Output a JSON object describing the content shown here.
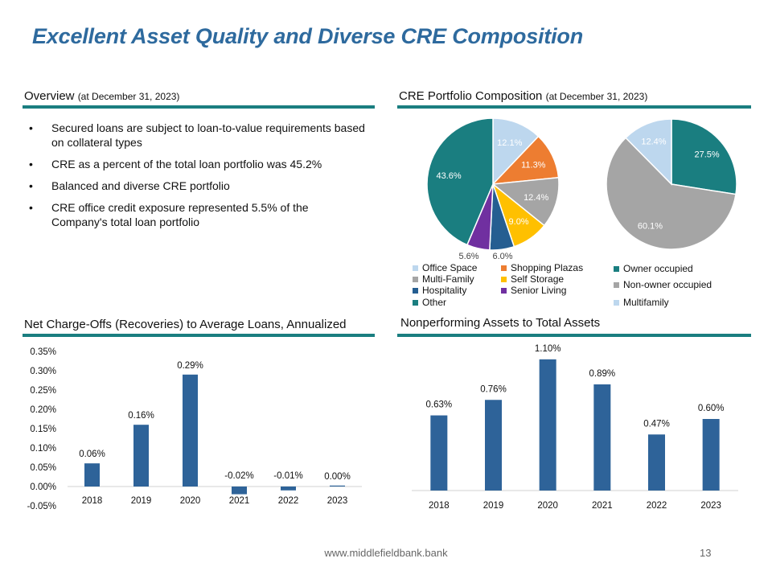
{
  "slide": {
    "title": "Excellent Asset Quality and Diverse CRE Composition",
    "footer_url": "www.middlefieldbank.bank",
    "page_number": "13"
  },
  "overview": {
    "heading": "Overview",
    "heading_note": "(at December 31, 2023)",
    "bullets": [
      "Secured loans are subject to loan-to-value requirements based on collateral types",
      "CRE as a percent of the total loan portfolio was 45.2%",
      "Balanced and diverse CRE portfolio",
      "CRE office credit exposure represented 5.5% of the Company's total loan portfolio"
    ]
  },
  "cre_section": {
    "heading": "CRE Portfolio Composition",
    "heading_note": "(at December 31, 2023)"
  },
  "nco_section": {
    "heading": "Net Charge-Offs (Recoveries) to Average Loans, Annualized"
  },
  "npa_section": {
    "heading": "Nonperforming Assets to Total Assets"
  },
  "colors": {
    "accent_rule": "#1a7e80",
    "title": "#2e6a9e",
    "bar": "#2e6399"
  },
  "chart_data": [
    {
      "type": "pie",
      "id": "cre-composition",
      "start_angle_deg": 0,
      "slices": [
        {
          "label": "Office Space",
          "value": 12.1,
          "display": "12.1%",
          "color": "#bdd7ee"
        },
        {
          "label": "Shopping Plazas",
          "value": 11.3,
          "display": "11.3%",
          "color": "#ed7d31"
        },
        {
          "label": "Multi-Family",
          "value": 12.4,
          "display": "12.4%",
          "color": "#a5a5a5"
        },
        {
          "label": "Self Storage",
          "value": 9.0,
          "display": "9.0%",
          "color": "#ffc000"
        },
        {
          "label": "Hospitality",
          "value": 6.0,
          "display": "6.0%",
          "color": "#255e91"
        },
        {
          "label": "Senior Living",
          "value": 5.6,
          "display": "5.6%",
          "color": "#7030a0"
        },
        {
          "label": "Other",
          "value": 43.6,
          "display": "43.6%",
          "color": "#1a7e80"
        }
      ],
      "legend_placement": "bottom"
    },
    {
      "type": "pie",
      "id": "cre-occupancy",
      "start_angle_deg": 0,
      "slices": [
        {
          "label": "Owner occupied",
          "value": 27.5,
          "display": "27.5%",
          "color": "#1a7e80"
        },
        {
          "label": "Non-owner occupied",
          "value": 60.1,
          "display": "60.1%",
          "color": "#a5a5a5"
        },
        {
          "label": "Multifamily",
          "value": 12.4,
          "display": "12.4%",
          "color": "#bdd7ee"
        }
      ],
      "legend_placement": "bottom"
    },
    {
      "type": "bar",
      "id": "net-charge-offs",
      "categories": [
        "2018",
        "2019",
        "2020",
        "2021",
        "2022",
        "2023"
      ],
      "values": [
        0.06,
        0.16,
        0.29,
        -0.02,
        -0.01,
        0.0
      ],
      "labels": [
        "0.06%",
        "0.16%",
        "0.29%",
        "-0.02%",
        "-0.01%",
        "0.00%"
      ],
      "ylim": [
        -0.05,
        0.35
      ],
      "yticks": [
        0.35,
        0.3,
        0.25,
        0.2,
        0.15,
        0.1,
        0.05,
        0.0,
        -0.05
      ],
      "ytick_labels": [
        "0.35%",
        "0.30%",
        "0.25%",
        "0.20%",
        "0.15%",
        "0.10%",
        "0.05%",
        "0.00%",
        "-0.05%"
      ],
      "grid": false,
      "color": "#2e6399"
    },
    {
      "type": "bar",
      "id": "npa-to-assets",
      "categories": [
        "2018",
        "2019",
        "2020",
        "2021",
        "2022",
        "2023"
      ],
      "values": [
        0.63,
        0.76,
        1.1,
        0.89,
        0.47,
        0.6
      ],
      "labels": [
        "0.63%",
        "0.76%",
        "1.10%",
        "0.89%",
        "0.47%",
        "0.60%"
      ],
      "ylim": [
        0,
        1.2
      ],
      "grid": false,
      "color": "#2e6399"
    }
  ]
}
